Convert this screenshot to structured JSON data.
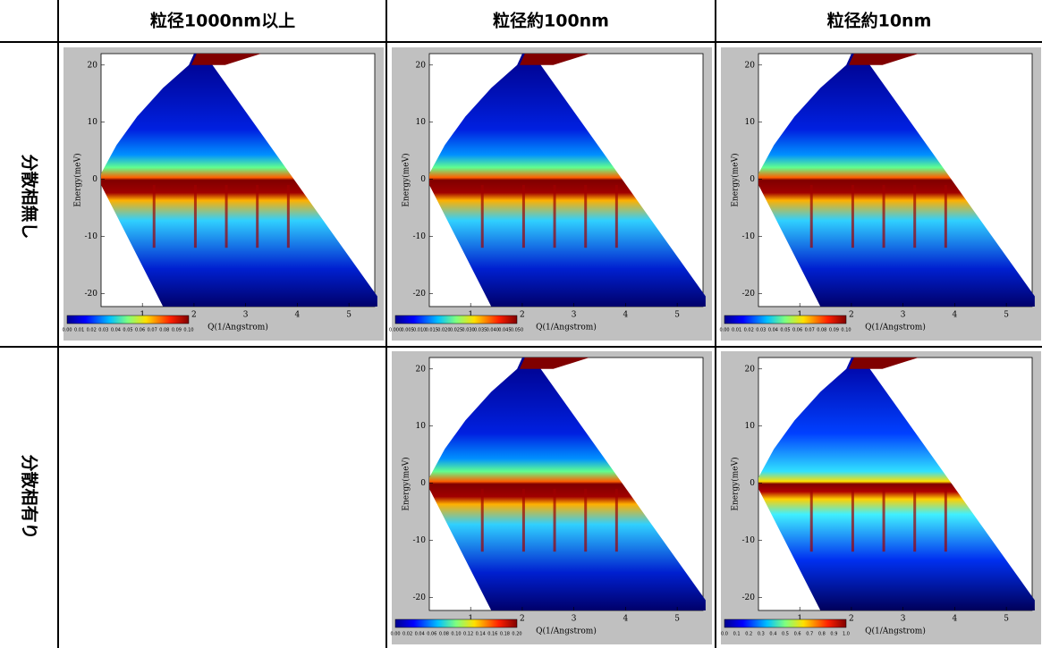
{
  "table": {
    "columns": [
      "粒径1000nm以上",
      "粒径約100nm",
      "粒径約10nm"
    ],
    "rows": [
      "分散相無し",
      "分散相有り"
    ],
    "cells": [
      [
        {
          "x_label": "Q(1/Angstrom)",
          "y_label": "Energy(meV)",
          "xticks": [
            "1",
            "2",
            "3",
            "4",
            "5"
          ],
          "yticks": [
            "20",
            "10",
            "0",
            "-10",
            "-20"
          ],
          "colorbar_labels": [
            "0.00",
            "0.01",
            "0.02",
            "0.03",
            "0.04",
            "0.05",
            "0.06",
            "0.07",
            "0.08",
            "0.09",
            "0.10"
          ]
        },
        {
          "x_label": "Q(1/Angstrom)",
          "y_label": "Energy(meV)",
          "xticks": [
            "1",
            "2",
            "3",
            "4",
            "5"
          ],
          "yticks": [
            "20",
            "10",
            "0",
            "-10",
            "-20"
          ],
          "colorbar_labels": [
            "0.000",
            "0.005",
            "0.010",
            "0.015",
            "0.020",
            "0.025",
            "0.030",
            "0.035",
            "0.040",
            "0.045",
            "0.050"
          ]
        },
        {
          "x_label": "Q(1/Angstrom)",
          "y_label": "Energy(meV)",
          "xticks": [
            "1",
            "2",
            "3",
            "4",
            "5"
          ],
          "yticks": [
            "20",
            "10",
            "0",
            "-10",
            "-20"
          ],
          "colorbar_labels": [
            "0.00",
            "0.01",
            "0.02",
            "0.03",
            "0.04",
            "0.05",
            "0.06",
            "0.07",
            "0.08",
            "0.09",
            "0.10"
          ]
        }
      ],
      [
        null,
        {
          "x_label": "Q(1/Angstrom)",
          "y_label": "Energy(meV)",
          "xticks": [
            "1",
            "2",
            "3",
            "4",
            "5"
          ],
          "yticks": [
            "20",
            "10",
            "0",
            "-10",
            "-20"
          ],
          "colorbar_labels": [
            "0.00",
            "0.02",
            "0.04",
            "0.06",
            "0.08",
            "0.10",
            "0.12",
            "0.14",
            "0.16",
            "0.18",
            "0.20"
          ]
        },
        {
          "x_label": "Q(1/Angstrom)",
          "y_label": "Energy(meV)",
          "xticks": [
            "1",
            "2",
            "3",
            "4",
            "5"
          ],
          "yticks": [
            "20",
            "10",
            "0",
            "-10",
            "-20"
          ],
          "colorbar_labels": [
            "0.0",
            "0.1",
            "0.2",
            "0.3",
            "0.4",
            "0.5",
            "0.6",
            "0.7",
            "0.8",
            "0.9",
            "1.0"
          ]
        }
      ]
    ]
  }
}
